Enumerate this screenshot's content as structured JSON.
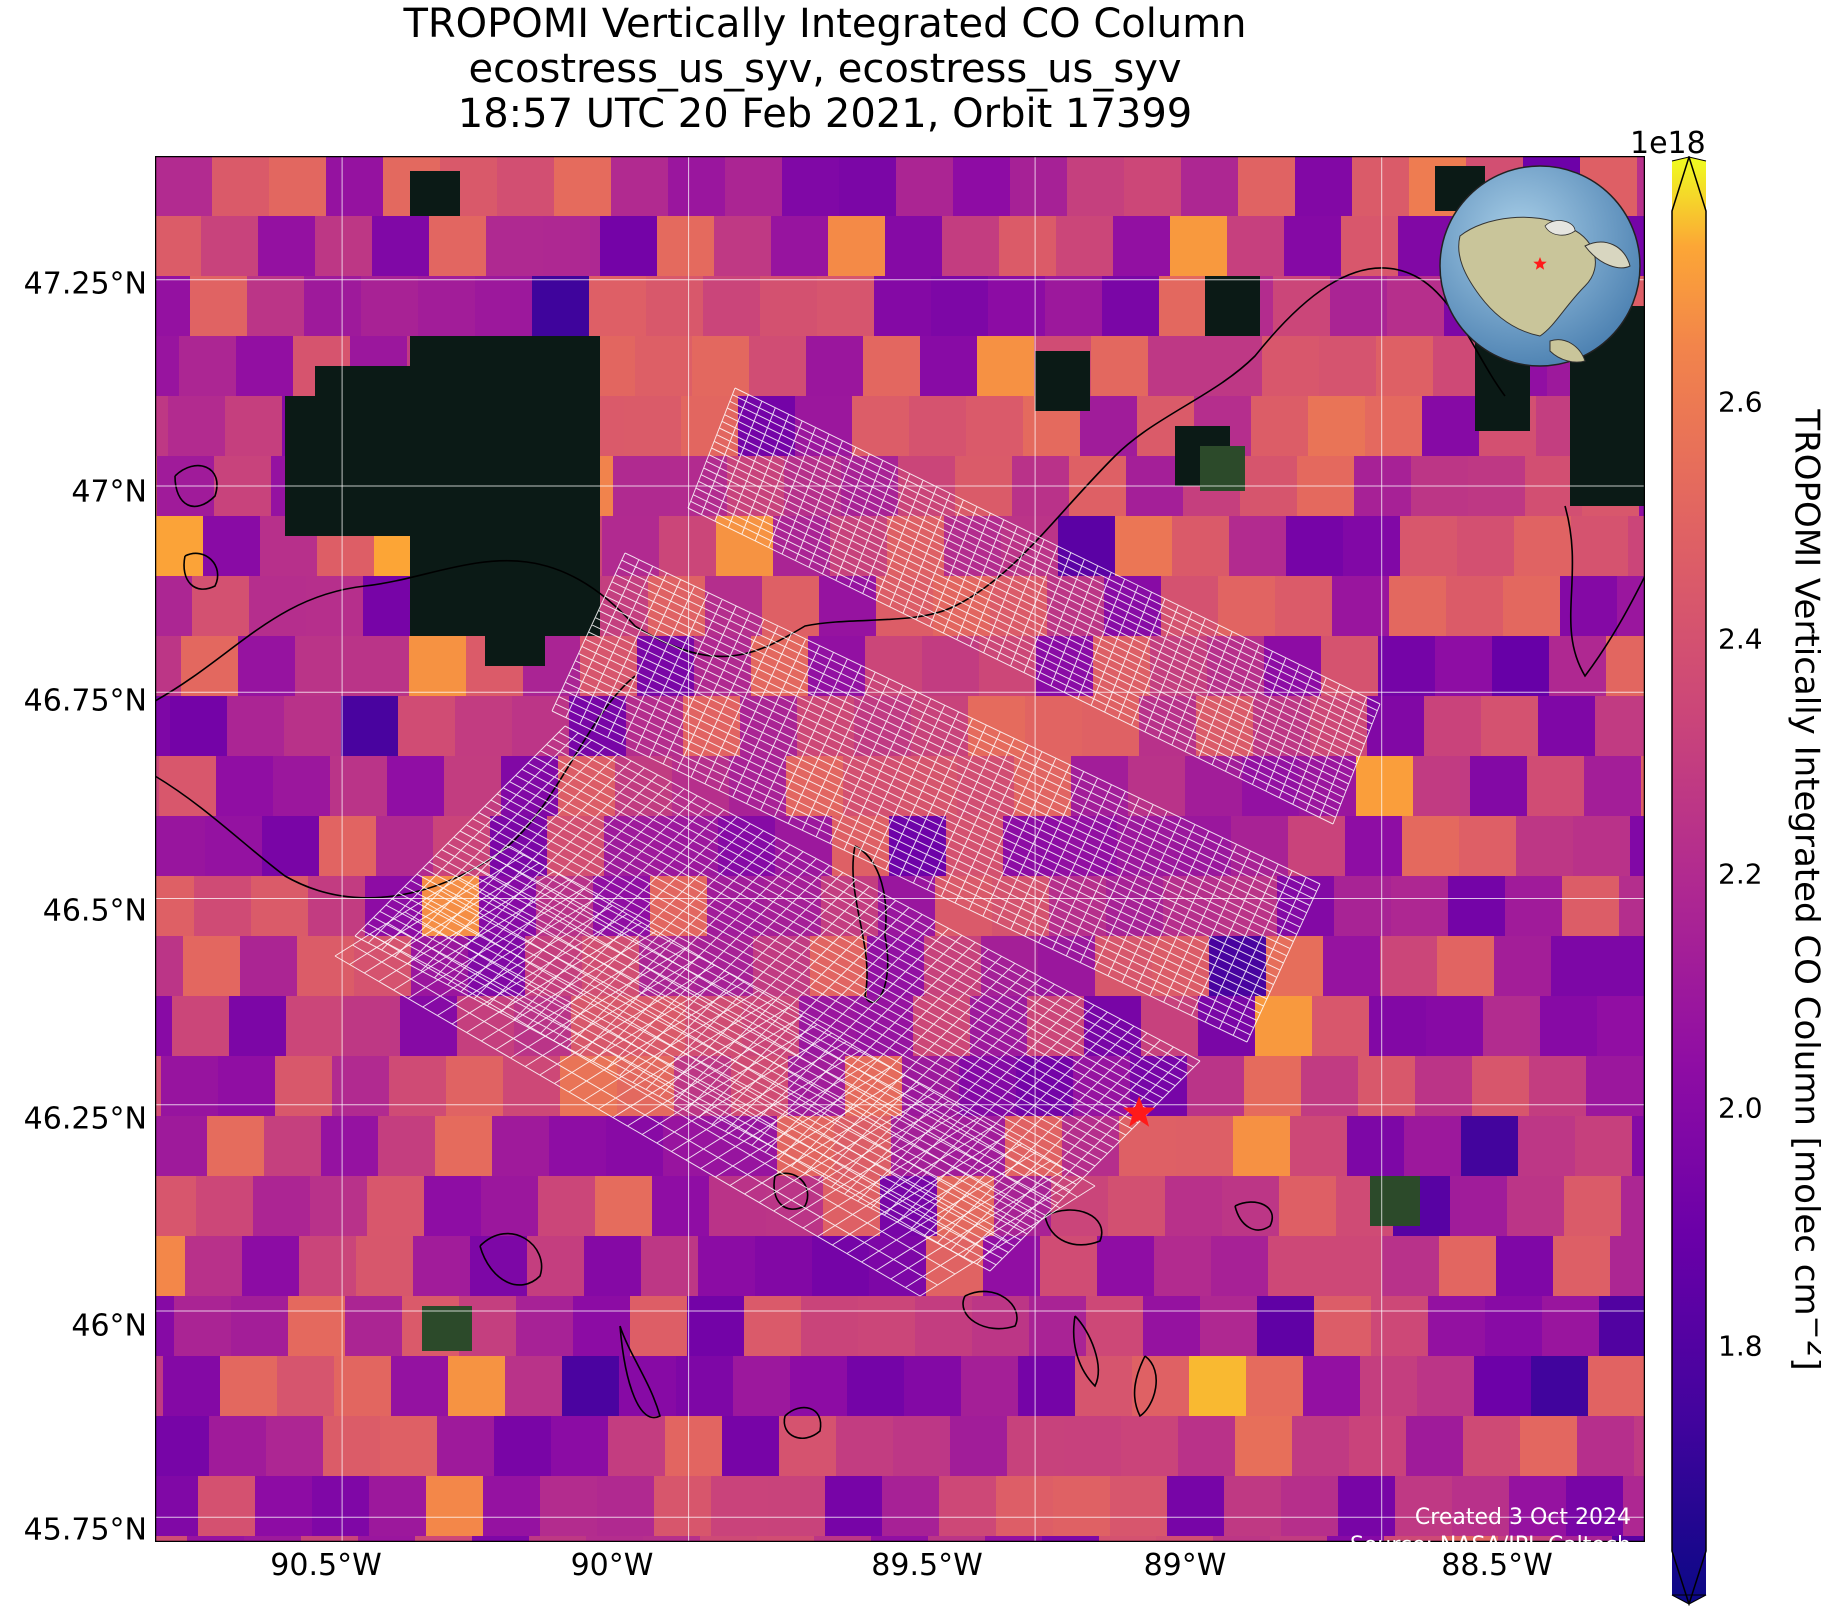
{
  "title": {
    "line1": "TROPOMI Vertically Integrated CO Column",
    "line2": "ecostress_us_syv, ecostress_us_syv",
    "line3": "18:57 UTC 20 Feb 2021, Orbit 17399"
  },
  "map": {
    "lat_labels": [
      "47.25°N",
      "47°N",
      "46.75°N",
      "46.5°N",
      "46.25°N",
      "46°N",
      "45.75°N"
    ],
    "lon_labels": [
      "90.5°W",
      "90°W",
      "89.5°W",
      "89°W",
      "88.5°W"
    ],
    "extent": {
      "lon_min": -90.77,
      "lon_max": -88.62,
      "lat_min": 45.72,
      "lat_max": 47.4
    },
    "site_marker": {
      "lon": -89.35,
      "lat": 46.24,
      "color": "#ff1a1a",
      "symbol": "star"
    },
    "inset_globe": {
      "center_lon": -90,
      "center_lat": 40,
      "marker_color": "#ff1a1a"
    },
    "credit_line1": "Created 3 Oct 2024",
    "credit_line2": "Source: NASA/JPL-Caltech"
  },
  "colorbar": {
    "label": "TROPOMI Vertically Integrated CO Column [molec cm",
    "label_exponent": "−2",
    "label_close": "]",
    "multiplier": "1e18",
    "ticks": [
      "1.8",
      "2.0",
      "2.2",
      "2.4",
      "2.6"
    ],
    "range": [
      1.65,
      2.75
    ],
    "colormap": "plasma",
    "extend": "both"
  }
}
